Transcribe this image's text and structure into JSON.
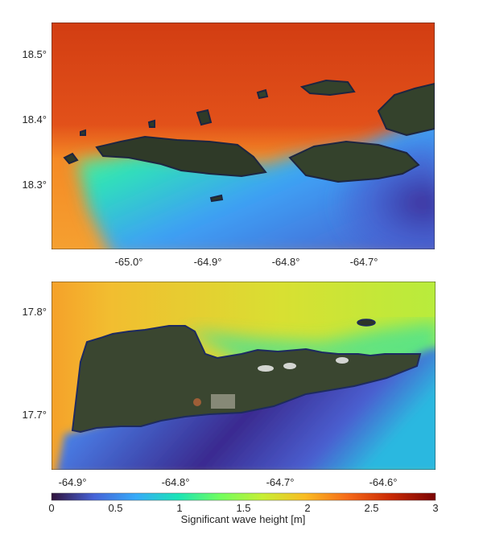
{
  "top_map": {
    "lat_ticks": [
      "18.5°",
      "18.4°",
      "18.3°"
    ],
    "lon_ticks": [
      "-65.0°",
      "-64.9°",
      "-64.8°",
      "-64.7°"
    ]
  },
  "bottom_map": {
    "lat_ticks": [
      "17.8°",
      "17.7°"
    ],
    "lon_ticks": [
      "-64.9°",
      "-64.8°",
      "-64.7°",
      "-64.6°"
    ]
  },
  "colorbar": {
    "label": "Significant wave height [m]",
    "ticks": [
      "0",
      "0.5",
      "1",
      "1.5",
      "2",
      "2.5",
      "3"
    ],
    "range": [
      0,
      3
    ],
    "colormap": [
      "#30123b",
      "#4662d7",
      "#36aaf9",
      "#1ae4b6",
      "#72fe5e",
      "#c7ef34",
      "#fabc22",
      "#f66b19",
      "#cb2a04",
      "#7a0403"
    ]
  }
}
